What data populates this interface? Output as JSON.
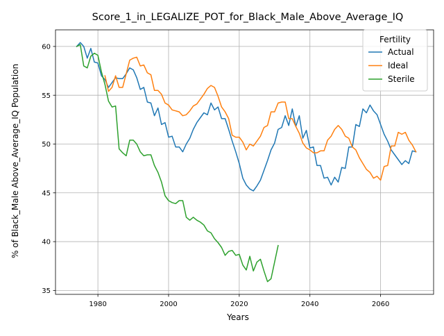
{
  "chart_data": {
    "type": "line",
    "title": "Score_1_in_LEGALIZE_POT_for_Black_Male_Above_Average_IQ",
    "xlabel": "Years",
    "ylabel": "% of Black_Male Above_Average_IQ Population",
    "xlim": [
      1968,
      2075
    ],
    "ylim": [
      34.6,
      61.7
    ],
    "xticks": [
      1980,
      2000,
      2020,
      2040,
      2060
    ],
    "yticks": [
      35,
      40,
      45,
      50,
      55,
      60
    ],
    "grid": true,
    "legend": {
      "title": "Fertility",
      "position": "top-right"
    },
    "series": [
      {
        "name": "Actual",
        "color": "#1f77b4",
        "x": [
          1974,
          1975,
          1976,
          1977,
          1978,
          1979,
          1980,
          1981,
          1982,
          1983,
          1984,
          1985,
          1986,
          1987,
          1988,
          1989,
          1990,
          1991,
          1992,
          1993,
          1994,
          1995,
          1996,
          1997,
          1998,
          1999,
          2000,
          2001,
          2002,
          2003,
          2004,
          2005,
          2006,
          2007,
          2008,
          2009,
          2010,
          2011,
          2012,
          2013,
          2014,
          2015,
          2016,
          2017,
          2018,
          2019,
          2020,
          2021,
          2022,
          2023,
          2024,
          2025,
          2026,
          2027,
          2028,
          2029,
          2030,
          2031,
          2032,
          2033,
          2034,
          2035,
          2036,
          2037,
          2038,
          2039,
          2040,
          2041,
          2042,
          2043,
          2044,
          2045,
          2046,
          2047,
          2048,
          2049,
          2050,
          2051,
          2052,
          2053,
          2054,
          2055,
          2056,
          2057,
          2058,
          2059,
          2060,
          2061,
          2062,
          2063,
          2064,
          2065,
          2066,
          2067,
          2068,
          2069,
          2070
        ],
        "y": [
          60.0,
          60.4,
          60.0,
          58.8,
          59.8,
          58.4,
          58.3,
          57.0,
          56.6,
          55.8,
          56.3,
          56.8,
          56.7,
          56.7,
          57.2,
          57.8,
          57.6,
          56.8,
          55.6,
          55.8,
          54.3,
          54.2,
          52.9,
          53.7,
          52.0,
          52.2,
          50.7,
          50.8,
          49.7,
          49.7,
          49.2,
          50.0,
          50.6,
          51.5,
          52.2,
          52.7,
          53.2,
          53.0,
          54.2,
          53.5,
          53.8,
          52.6,
          52.6,
          51.5,
          50.3,
          49.2,
          48.0,
          46.5,
          45.8,
          45.4,
          45.2,
          45.7,
          46.3,
          47.3,
          48.3,
          49.4,
          50.1,
          51.5,
          51.7,
          52.9,
          51.9,
          53.6,
          51.8,
          52.9,
          50.6,
          51.4,
          49.6,
          49.7,
          47.8,
          47.8,
          46.5,
          46.6,
          45.8,
          46.6,
          46.1,
          47.6,
          47.5,
          49.7,
          49.7,
          52.0,
          51.8,
          53.6,
          53.2,
          54.0,
          53.4,
          53.0,
          52.0,
          51.0,
          50.3,
          49.4,
          48.9,
          48.4,
          47.9,
          48.3,
          48.0,
          49.3,
          49.2
        ]
      },
      {
        "name": "Ideal",
        "color": "#ff7f0e",
        "x": [
          1982,
          1983,
          1984,
          1985,
          1986,
          1987,
          1988,
          1989,
          1990,
          1991,
          1992,
          1993,
          1994,
          1995,
          1996,
          1997,
          1998,
          1999,
          2000,
          2001,
          2002,
          2003,
          2004,
          2005,
          2006,
          2007,
          2008,
          2009,
          2010,
          2011,
          2012,
          2013,
          2014,
          2015,
          2016,
          2017,
          2018,
          2019,
          2020,
          2021,
          2022,
          2023,
          2024,
          2025,
          2026,
          2027,
          2028,
          2029,
          2030,
          2031,
          2032,
          2033,
          2034,
          2035,
          2036,
          2037,
          2038,
          2039,
          2040,
          2041,
          2042,
          2043,
          2044,
          2045,
          2046,
          2047,
          2048,
          2049,
          2050,
          2051,
          2052,
          2053,
          2054,
          2055,
          2056,
          2057,
          2058,
          2059,
          2060,
          2061,
          2062,
          2063,
          2064,
          2065,
          2066,
          2067,
          2068,
          2069,
          2070
        ],
        "y": [
          57.0,
          55.4,
          55.8,
          57.0,
          55.8,
          55.8,
          57.2,
          58.6,
          58.8,
          58.9,
          58.0,
          58.1,
          57.3,
          57.1,
          55.5,
          55.5,
          55.1,
          54.2,
          54.0,
          53.5,
          53.4,
          53.3,
          52.9,
          53.0,
          53.4,
          53.9,
          54.1,
          54.6,
          55.1,
          55.7,
          56.0,
          55.8,
          54.9,
          53.8,
          53.3,
          52.6,
          50.9,
          50.7,
          50.7,
          50.2,
          49.4,
          50.0,
          49.8,
          50.3,
          50.8,
          51.7,
          51.9,
          53.3,
          53.3,
          54.2,
          54.3,
          54.3,
          52.6,
          52.6,
          51.8,
          51.1,
          50.1,
          49.6,
          49.4,
          49.1,
          49.1,
          49.3,
          49.3,
          50.4,
          50.8,
          51.5,
          51.9,
          51.5,
          50.8,
          50.6,
          49.7,
          49.4,
          48.6,
          48.0,
          47.4,
          47.1,
          46.5,
          46.7,
          46.3,
          47.7,
          47.8,
          49.8,
          49.8,
          51.2,
          51.0,
          51.2,
          50.4,
          49.9,
          49.2
        ]
      },
      {
        "name": "Sterile",
        "color": "#2ca02c",
        "x": [
          1974,
          1975,
          1976,
          1977,
          1978,
          1979,
          1980,
          1981,
          1982,
          1983,
          1984,
          1985,
          1986,
          1987,
          1988,
          1989,
          1990,
          1991,
          1992,
          1993,
          1994,
          1995,
          1996,
          1997,
          1998,
          1999,
          2000,
          2001,
          2002,
          2003,
          2004,
          2005,
          2006,
          2007,
          2008,
          2009,
          2010,
          2011,
          2012,
          2013,
          2014,
          2015,
          2016,
          2017,
          2018,
          2019,
          2020,
          2021,
          2022,
          2023,
          2024,
          2025,
          2026,
          2027,
          2028,
          2029,
          2030,
          2031
        ],
        "y": [
          60.0,
          60.2,
          58.0,
          57.8,
          59.0,
          59.3,
          59.1,
          57.4,
          56.1,
          54.4,
          53.8,
          53.9,
          49.5,
          49.1,
          48.8,
          50.4,
          50.4,
          50.0,
          49.2,
          48.8,
          48.9,
          48.9,
          47.8,
          47.1,
          46.1,
          44.7,
          44.2,
          44.0,
          43.9,
          44.2,
          44.2,
          42.5,
          42.2,
          42.5,
          42.2,
          42.0,
          41.7,
          41.1,
          40.9,
          40.3,
          39.9,
          39.4,
          38.6,
          39.0,
          39.1,
          38.6,
          38.7,
          37.6,
          37.1,
          38.5,
          37.0,
          37.9,
          38.2,
          37.0,
          35.9,
          36.2,
          37.9,
          39.6
        ]
      }
    ]
  }
}
